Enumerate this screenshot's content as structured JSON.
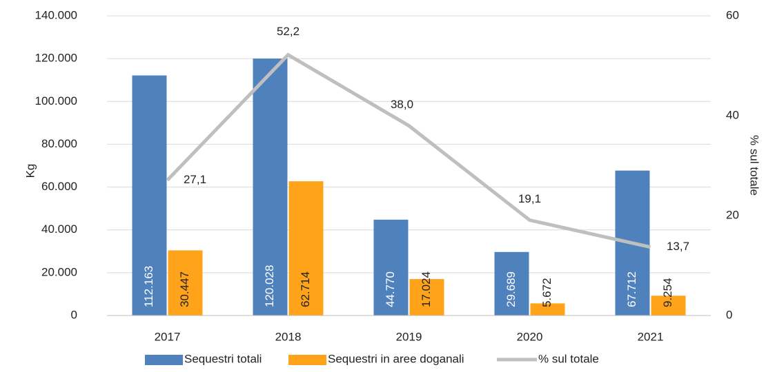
{
  "chart_data": {
    "type": "bar",
    "categories": [
      "2017",
      "2018",
      "2019",
      "2020",
      "2021"
    ],
    "series": [
      {
        "name": "Sequestri totali",
        "color": "#4f81bd",
        "values": [
          112163,
          120028,
          44770,
          29689,
          67712
        ],
        "value_labels": [
          "112.163",
          "120.028",
          "44.770",
          "29.689",
          "67.712"
        ]
      },
      {
        "name": "Sequestri in aree doganali",
        "color": "#ffa31a",
        "values": [
          30447,
          62714,
          17024,
          5672,
          9254
        ],
        "value_labels": [
          "30.447",
          "62.714",
          "17.024",
          "5.672",
          "9.254"
        ]
      },
      {
        "name": "% sul totale",
        "type": "line",
        "axis": "y2",
        "color": "#bfbfbf",
        "values": [
          27.1,
          52.2,
          38.0,
          19.1,
          13.7
        ],
        "value_labels": [
          "27,1",
          "52,2",
          "38,0",
          "19,1",
          "13,7"
        ]
      }
    ],
    "y_label": "Kg",
    "y2_label": "% sul totale",
    "ylim": [
      0,
      140000
    ],
    "yticks": [
      0,
      {
        "value": 20000,
        "label": "20.000"
      },
      {
        "value": 40000,
        "label": "40.000"
      },
      {
        "value": 60000,
        "label": "60.000"
      },
      {
        "value": 80000,
        "label": "80.000"
      },
      {
        "value": 100000,
        "label": "100.000"
      },
      {
        "value": 120000,
        "label": "120.000"
      },
      {
        "value": 140000,
        "label": "140.000"
      }
    ],
    "y2lim": [
      0,
      60
    ],
    "y2ticks": [
      0,
      20,
      40,
      60
    ],
    "grid": true,
    "legend": "bottom"
  }
}
